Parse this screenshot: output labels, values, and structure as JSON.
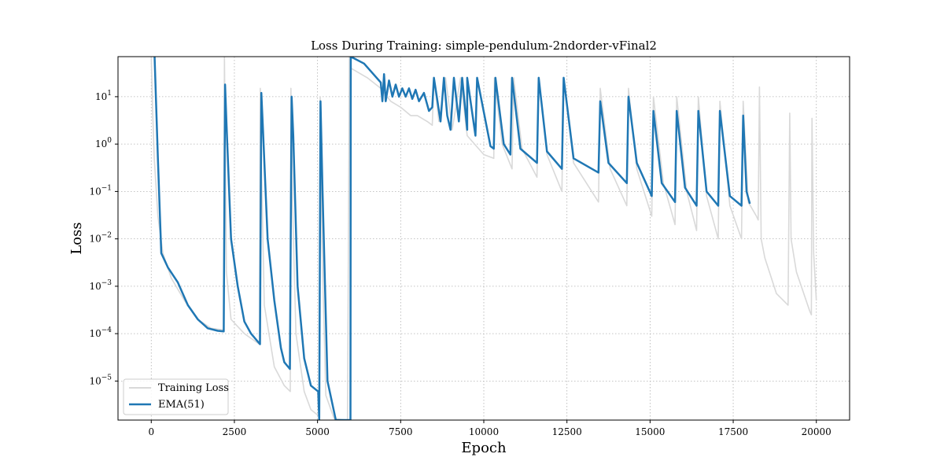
{
  "chart_data": {
    "type": "line",
    "title": "Loss During Training: simple-pendulum-2ndorder-vFinal2",
    "xlabel": "Epoch",
    "ylabel": "Loss",
    "xlim": [
      -1000,
      21000
    ],
    "ylim": [
      1.5e-06,
      70
    ],
    "yscale": "log",
    "grid": true,
    "legend_position": "bottom-left",
    "x_ticks": [
      0,
      2500,
      5000,
      7500,
      10000,
      12500,
      15000,
      17500,
      20000
    ],
    "x_tick_labels": [
      "0",
      "2500",
      "5000",
      "7500",
      "10000",
      "12500",
      "15000",
      "17500",
      "20000"
    ],
    "y_ticks": [
      1e-05,
      0.0001,
      0.001,
      0.01,
      0.1,
      1,
      10
    ],
    "y_tick_exponents": [
      "−5",
      "−4",
      "−3",
      "−2",
      "−1",
      "0",
      "1"
    ],
    "y_tick_base": "10",
    "series": [
      {
        "name": "Training Loss",
        "color": "#d9d9d9",
        "points": [
          [
            0,
            70
          ],
          [
            40,
            5
          ],
          [
            90,
            0.5
          ],
          [
            200,
            0.03
          ],
          [
            350,
            0.005
          ],
          [
            600,
            0.0015
          ],
          [
            1000,
            0.0005
          ],
          [
            1400,
            0.0002
          ],
          [
            1800,
            0.00013
          ],
          [
            2180,
            0.00012
          ],
          [
            2200,
            70
          ],
          [
            2230,
            0.5
          ],
          [
            2260,
            0.002
          ],
          [
            2400,
            0.0002
          ],
          [
            2800,
            0.0001
          ],
          [
            3250,
            6e-05
          ],
          [
            3280,
            15
          ],
          [
            3320,
            0.2
          ],
          [
            3400,
            0.0004
          ],
          [
            3700,
            2e-05
          ],
          [
            4000,
            8e-06
          ],
          [
            4180,
            6e-06
          ],
          [
            4200,
            15
          ],
          [
            4250,
            0.05
          ],
          [
            4350,
            0.0001
          ],
          [
            4600,
            6e-06
          ],
          [
            4800,
            2.5e-06
          ],
          [
            5050,
            1.8e-06
          ],
          [
            5080,
            10
          ],
          [
            5130,
            0.01
          ],
          [
            5250,
            5e-06
          ],
          [
            5500,
            1.6e-06
          ],
          [
            5900,
            1.5e-06
          ],
          [
            5960,
            70
          ],
          [
            6000,
            40
          ],
          [
            6500,
            25
          ],
          [
            6900,
            15
          ],
          [
            7200,
            8
          ],
          [
            7500,
            6
          ],
          [
            7800,
            4
          ],
          [
            8000,
            4
          ],
          [
            8300,
            3
          ],
          [
            8450,
            2.5
          ],
          [
            8500,
            25
          ],
          [
            8650,
            3
          ],
          [
            8850,
            25
          ],
          [
            9050,
            2
          ],
          [
            9300,
            25
          ],
          [
            9500,
            1.5
          ],
          [
            10000,
            0.6
          ],
          [
            10300,
            0.5
          ],
          [
            10320,
            25
          ],
          [
            10550,
            1
          ],
          [
            10850,
            0.3
          ],
          [
            10900,
            25
          ],
          [
            11150,
            0.8
          ],
          [
            11600,
            0.2
          ],
          [
            11650,
            25
          ],
          [
            11900,
            0.6
          ],
          [
            12350,
            0.1
          ],
          [
            12400,
            25
          ],
          [
            12700,
            0.4
          ],
          [
            13450,
            0.06
          ],
          [
            13500,
            15
          ],
          [
            13800,
            0.3
          ],
          [
            14300,
            0.05
          ],
          [
            14350,
            15
          ],
          [
            14600,
            0.3
          ],
          [
            15050,
            0.03
          ],
          [
            15100,
            10
          ],
          [
            15400,
            0.15
          ],
          [
            15750,
            0.02
          ],
          [
            15800,
            10
          ],
          [
            16100,
            0.1
          ],
          [
            16400,
            0.015
          ],
          [
            16450,
            10
          ],
          [
            16700,
            0.08
          ],
          [
            17050,
            0.01
          ],
          [
            17100,
            8
          ],
          [
            17400,
            0.05
          ],
          [
            17750,
            0.01
          ],
          [
            17800,
            8
          ],
          [
            17950,
            0.06
          ],
          [
            18200,
            0.03
          ],
          [
            18250,
            0.025
          ],
          [
            18290,
            16
          ],
          [
            18340,
            0.01
          ],
          [
            18450,
            0.004
          ],
          [
            18800,
            0.0007
          ],
          [
            19150,
            0.0004
          ],
          [
            19200,
            4.5
          ],
          [
            19240,
            0.01
          ],
          [
            19400,
            0.002
          ],
          [
            19800,
            0.0003
          ],
          [
            19850,
            0.00025
          ],
          [
            19870,
            3.5
          ],
          [
            19920,
            0.005
          ],
          [
            20000,
            0.0005
          ]
        ]
      },
      {
        "name": "EMA(51)",
        "color": "#1f77b4",
        "points": [
          [
            100,
            70
          ],
          [
            200,
            0.5
          ],
          [
            300,
            0.005
          ],
          [
            500,
            0.0025
          ],
          [
            800,
            0.0012
          ],
          [
            1100,
            0.0004
          ],
          [
            1400,
            0.0002
          ],
          [
            1700,
            0.00013
          ],
          [
            2000,
            0.000115
          ],
          [
            2180,
            0.000112
          ],
          [
            2220,
            18
          ],
          [
            2260,
            3
          ],
          [
            2400,
            0.01
          ],
          [
            2600,
            0.001
          ],
          [
            2800,
            0.00018
          ],
          [
            3000,
            0.0001
          ],
          [
            3270,
            6e-05
          ],
          [
            3310,
            12
          ],
          [
            3360,
            2
          ],
          [
            3500,
            0.01
          ],
          [
            3700,
            0.0005
          ],
          [
            3900,
            5e-05
          ],
          [
            4000,
            2.5e-05
          ],
          [
            4170,
            1.8e-05
          ],
          [
            4220,
            10
          ],
          [
            4270,
            1.5
          ],
          [
            4400,
            0.001
          ],
          [
            4600,
            3e-05
          ],
          [
            4800,
            8e-06
          ],
          [
            5020,
            6e-06
          ],
          [
            5050,
            1.5e-06
          ],
          [
            5090,
            8
          ],
          [
            5150,
            0.1
          ],
          [
            5300,
            1e-05
          ],
          [
            5550,
            1.5e-06
          ],
          [
            5990,
            1.5e-06
          ],
          [
            6000,
            70
          ],
          [
            6400,
            50
          ],
          [
            6900,
            20
          ],
          [
            6950,
            8
          ],
          [
            7000,
            30
          ],
          [
            7050,
            8
          ],
          [
            7150,
            22
          ],
          [
            7250,
            10
          ],
          [
            7350,
            18
          ],
          [
            7450,
            10
          ],
          [
            7550,
            15
          ],
          [
            7650,
            10
          ],
          [
            7750,
            15
          ],
          [
            7850,
            9
          ],
          [
            7950,
            14
          ],
          [
            8050,
            8
          ],
          [
            8200,
            12
          ],
          [
            8350,
            5
          ],
          [
            8450,
            6
          ],
          [
            8500,
            25
          ],
          [
            8700,
            3
          ],
          [
            8800,
            25
          ],
          [
            8900,
            4
          ],
          [
            9000,
            2
          ],
          [
            9100,
            25
          ],
          [
            9250,
            3
          ],
          [
            9350,
            25
          ],
          [
            9500,
            2
          ],
          [
            9500,
            25
          ],
          [
            9750,
            1.5
          ],
          [
            9800,
            25
          ],
          [
            10200,
            0.9
          ],
          [
            10300,
            0.8
          ],
          [
            10350,
            25
          ],
          [
            10600,
            1
          ],
          [
            10800,
            0.6
          ],
          [
            10850,
            25
          ],
          [
            11100,
            0.8
          ],
          [
            11600,
            0.4
          ],
          [
            11650,
            25
          ],
          [
            11900,
            0.7
          ],
          [
            12350,
            0.3
          ],
          [
            12400,
            25
          ],
          [
            12700,
            0.5
          ],
          [
            13450,
            0.25
          ],
          [
            13500,
            8
          ],
          [
            13750,
            0.4
          ],
          [
            14300,
            0.15
          ],
          [
            14350,
            10
          ],
          [
            14600,
            0.4
          ],
          [
            15050,
            0.08
          ],
          [
            15100,
            5
          ],
          [
            15350,
            0.15
          ],
          [
            15750,
            0.06
          ],
          [
            15800,
            5
          ],
          [
            16050,
            0.12
          ],
          [
            16400,
            0.05
          ],
          [
            16450,
            5
          ],
          [
            16700,
            0.1
          ],
          [
            17050,
            0.05
          ],
          [
            17100,
            5
          ],
          [
            17400,
            0.08
          ],
          [
            17750,
            0.05
          ],
          [
            17800,
            4
          ],
          [
            17900,
            0.1
          ],
          [
            18000,
            0.055
          ]
        ]
      }
    ]
  }
}
